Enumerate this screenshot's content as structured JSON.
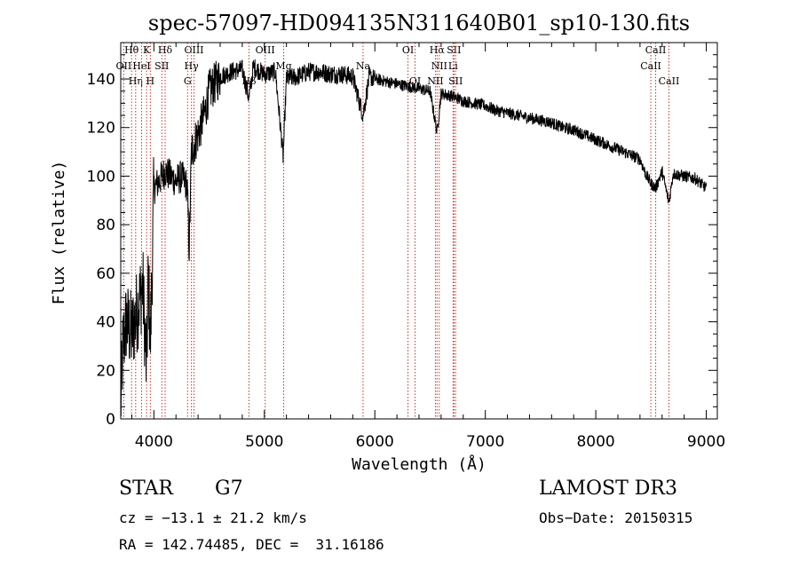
{
  "chart_data": {
    "type": "line",
    "title": "spec-57097-HD094135N311640B01_sp10-130.fits",
    "xlabel": "Wavelength (Å)",
    "ylabel": "Flux (relative)",
    "xlim": [
      3700,
      9100
    ],
    "ylim": [
      0,
      155
    ],
    "xticks": [
      4000,
      5000,
      6000,
      7000,
      8000,
      9000
    ],
    "yticks": [
      0,
      20,
      40,
      60,
      80,
      100,
      120,
      140
    ],
    "grid": false,
    "spectrum_anchor_points": {
      "x": [
        3700,
        3720,
        3750,
        3800,
        3850,
        3900,
        3933,
        3950,
        3968,
        4000,
        4050,
        4100,
        4150,
        4200,
        4250,
        4300,
        4320,
        4340,
        4380,
        4420,
        4460,
        4500,
        4600,
        4700,
        4800,
        4861,
        4900,
        5000,
        5100,
        5170,
        5200,
        5300,
        5400,
        5500,
        5600,
        5700,
        5800,
        5893,
        5950,
        6000,
        6100,
        6200,
        6300,
        6400,
        6500,
        6563,
        6600,
        6700,
        6800,
        6900,
        7000,
        7100,
        7200,
        7300,
        7400,
        7500,
        7600,
        7700,
        7800,
        7900,
        8000,
        8100,
        8200,
        8300,
        8400,
        8450,
        8498,
        8542,
        8600,
        8662,
        8700,
        8800,
        8900,
        8950,
        9000
      ],
      "y": [
        5,
        30,
        40,
        35,
        45,
        55,
        20,
        60,
        30,
        95,
        98,
        102,
        100,
        98,
        100,
        96,
        70,
        110,
        115,
        120,
        126,
        135,
        141,
        143,
        144,
        132,
        145,
        142,
        143,
        108,
        140,
        141,
        143,
        143,
        142,
        142,
        141,
        125,
        141,
        140,
        139,
        138,
        137,
        136,
        135,
        118,
        134,
        133,
        131,
        130,
        129,
        127,
        126,
        125,
        124,
        123,
        122,
        120,
        119,
        117,
        115,
        113,
        111,
        109,
        107,
        101,
        97,
        95,
        102,
        89,
        101,
        100,
        99,
        97,
        95
      ]
    },
    "lines": [
      {
        "label": "Hθ",
        "x": 3798,
        "row": 0
      },
      {
        "label": "OII",
        "x": 3727,
        "row": 1
      },
      {
        "label": "Hη",
        "x": 3835,
        "row": 2
      },
      {
        "label": "K",
        "x": 3934,
        "row": 0
      },
      {
        "label": "HeI",
        "x": 3889,
        "row": 1
      },
      {
        "label": "H",
        "x": 3968,
        "row": 2
      },
      {
        "label": "Hδ",
        "x": 4102,
        "row": 0
      },
      {
        "label": "SII",
        "x": 4072,
        "row": 1
      },
      {
        "label": "OIII",
        "x": 4363,
        "row": 0
      },
      {
        "label": "Hγ",
        "x": 4340,
        "row": 1
      },
      {
        "label": "G",
        "x": 4305,
        "row": 2
      },
      {
        "label": "OIII",
        "x": 5007,
        "row": 0
      },
      {
        "label": "Mg",
        "x": 5175,
        "row": 1
      },
      {
        "label": "Hβ",
        "x": 4861,
        "row": 2
      },
      {
        "label": "Na",
        "x": 5893,
        "row": 1
      },
      {
        "label": "OI",
        "x": 6300,
        "row": 0
      },
      {
        "label": "OI",
        "x": 6364,
        "row": 2
      },
      {
        "label": "Hα",
        "x": 6563,
        "row": 0
      },
      {
        "label": "NII",
        "x": 6583,
        "row": 1
      },
      {
        "label": "NII",
        "x": 6548,
        "row": 2
      },
      {
        "label": "SII",
        "x": 6716,
        "row": 0
      },
      {
        "label": "Li",
        "x": 6708,
        "row": 1
      },
      {
        "label": "SII",
        "x": 6731,
        "row": 2
      },
      {
        "label": "CaII",
        "x": 8542,
        "row": 0
      },
      {
        "label": "CaII",
        "x": 8498,
        "row": 1
      },
      {
        "label": "CaII",
        "x": 8662,
        "row": 2
      }
    ]
  },
  "info": {
    "object_type": "STAR",
    "subclass": "G7",
    "survey": "LAMOST DR3",
    "redshift": "cz = −13.1 ± 21.2 km/s",
    "obs_date": "Obs−Date: 20150315",
    "coordinates": "RA = 142.74485, DEC =  31.16186"
  }
}
